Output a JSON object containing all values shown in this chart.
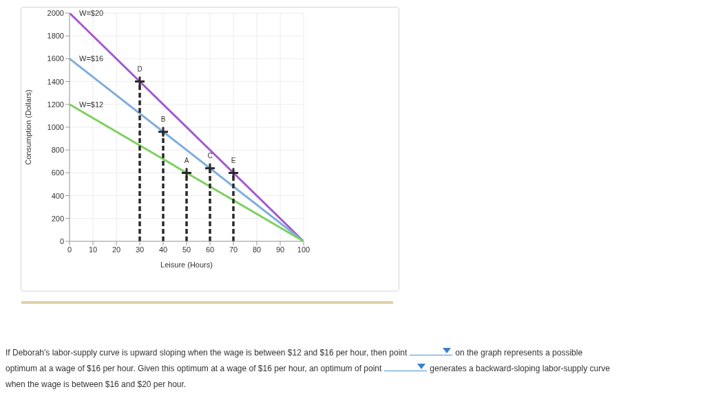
{
  "chart_data": {
    "type": "line",
    "xlabel": "Leisure (Hours)",
    "ylabel": "Consumption (Dollars)",
    "xlim": [
      0,
      100
    ],
    "xticks": [
      0,
      10,
      20,
      30,
      40,
      50,
      60,
      70,
      80,
      90,
      100
    ],
    "ylim": [
      0,
      2000
    ],
    "yticks": [
      0,
      200,
      400,
      600,
      800,
      1000,
      1200,
      1400,
      1600,
      1800,
      2000
    ],
    "grid": true,
    "legend": false,
    "marker": "none",
    "line_style": "solid",
    "series": [
      {
        "name": "W=$20",
        "color": "#a259d0",
        "x": [
          0,
          100
        ],
        "values": [
          2000,
          0
        ]
      },
      {
        "name": "W=$16",
        "color": "#80aedb",
        "x": [
          0,
          100
        ],
        "values": [
          1600,
          0
        ]
      },
      {
        "name": "W=$12",
        "color": "#7ed061",
        "x": [
          0,
          100
        ],
        "values": [
          1200,
          0
        ]
      },
      {
        "color": "#2a2a2a",
        "line_style": "dashed",
        "x": [
          30,
          30
        ],
        "values": [
          0,
          1400
        ]
      },
      {
        "color": "#2a2a2a",
        "line_style": "dashed",
        "x": [
          40,
          40
        ],
        "values": [
          0,
          960
        ]
      },
      {
        "color": "#2a2a2a",
        "line_style": "dashed",
        "x": [
          50,
          50
        ],
        "values": [
          0,
          600
        ]
      },
      {
        "color": "#2a2a2a",
        "line_style": "dashed",
        "x": [
          60,
          60
        ],
        "values": [
          0,
          640
        ]
      },
      {
        "color": "#2a2a2a",
        "line_style": "dashed",
        "x": [
          70,
          70
        ],
        "values": [
          0,
          600
        ]
      },
      {
        "type": "scatter",
        "marker": "cross",
        "color": "#2a2a2a",
        "x": [
          30,
          40,
          50,
          60,
          70
        ],
        "values": [
          1400,
          960,
          600,
          640,
          600
        ],
        "value_labels": [
          "D",
          "B",
          "A",
          "C",
          "E"
        ]
      }
    ],
    "annotations": [
      "If Deborah's labor-supply curve is upward sloping when the wage is between $12 and $16 per hour, then point",
      "on the graph represents a possible optimum at a wage of $16 per hour. Given this optimum at a wage of $16 per hour, an optimum of point",
      "generates a backward-sloping labor-supply curve when the wage is between $16 and $20 per hour."
    ]
  }
}
